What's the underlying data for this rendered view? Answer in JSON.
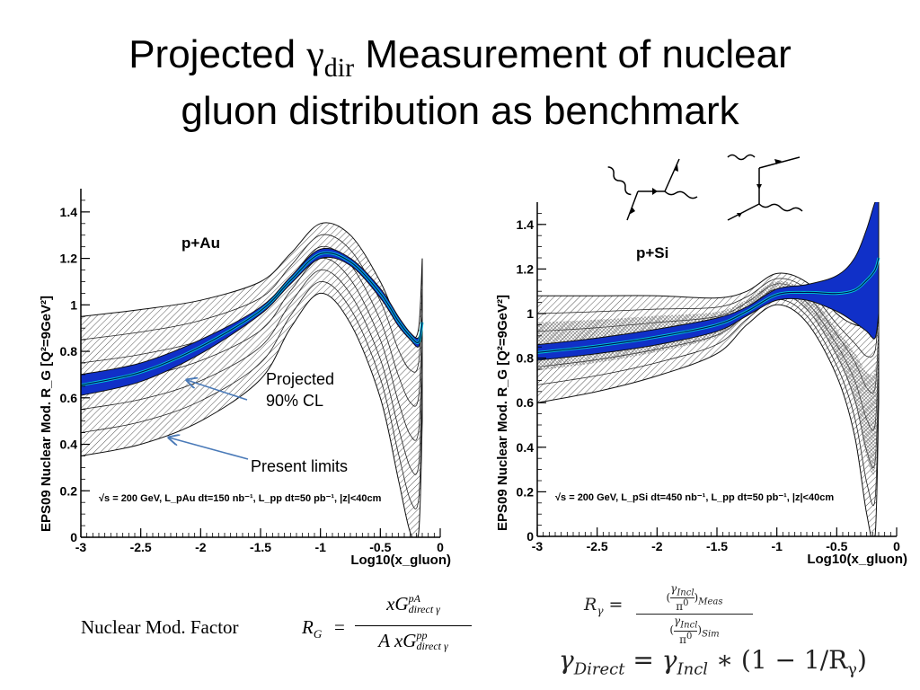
{
  "title": {
    "part1": "Projected ",
    "gamma": "γ",
    "sub": "dir",
    "part2": " Measurement of nuclear",
    "line2": "gluon distribution as benchmark"
  },
  "chart_data": [
    {
      "type": "area",
      "label": "p+Au",
      "ylabel": "EPS09 Nuclear Mod. R_G [Q²=9GeV²]",
      "xlabel": "Log10(x_gluon)",
      "xlim": [
        -3,
        0
      ],
      "ylim": [
        0,
        1.5
      ],
      "xticks": [
        "-3",
        "-2.5",
        "-2",
        "-1.5",
        "-1",
        "-0.5",
        "0"
      ],
      "yticks": [
        "0",
        "0.2",
        "0.4",
        "0.6",
        "0.8",
        "1",
        "1.2",
        "1.4"
      ],
      "info": "√s = 200 GeV, L_pAu dt=150 nb⁻¹, L_pp dt=50 pb⁻¹, |z|<40cm",
      "series": [
        {
          "name": "Present limits",
          "x": [
            -3,
            -2.5,
            -2,
            -1.5,
            -1.25,
            -1,
            -0.75,
            -0.5,
            -0.35,
            -0.25,
            -0.18,
            -0.15
          ],
          "upper": [
            0.95,
            0.98,
            1.02,
            1.1,
            1.22,
            1.35,
            1.3,
            1.1,
            0.92,
            0.86,
            0.9,
            1.2
          ],
          "lower": [
            0.35,
            0.4,
            0.5,
            0.68,
            0.9,
            1.05,
            0.92,
            0.6,
            0.25,
            0.02,
            0.02,
            0.5
          ]
        },
        {
          "name": "Projected 90% CL",
          "x": [
            -3,
            -2.5,
            -2,
            -1.5,
            -1.25,
            -1,
            -0.75,
            -0.5,
            -0.35,
            -0.25,
            -0.18,
            -0.15
          ],
          "upper": [
            0.7,
            0.75,
            0.85,
            0.99,
            1.12,
            1.24,
            1.2,
            1.07,
            0.95,
            0.88,
            0.86,
            0.95
          ],
          "lower": [
            0.61,
            0.67,
            0.79,
            0.96,
            1.09,
            1.2,
            1.17,
            1.03,
            0.91,
            0.85,
            0.82,
            0.9
          ]
        }
      ]
    },
    {
      "type": "area",
      "label": "p+Si",
      "ylabel": "EPS09 Nuclear Mod. R_G [Q²=9GeV²]",
      "xlabel": "Log10(x_gluon)",
      "xlim": [
        -3,
        0
      ],
      "ylim": [
        0,
        1.5
      ],
      "xticks": [
        "-3",
        "-2.5",
        "-2",
        "-1.5",
        "-1",
        "-0.5",
        "0"
      ],
      "yticks": [
        "0",
        "0.2",
        "0.4",
        "0.6",
        "0.8",
        "1",
        "1.2",
        "1.4"
      ],
      "info": "√s = 200 GeV, L_pSi dt=450 nb⁻¹, L_pp dt=50 pb⁻¹, |z|<40cm",
      "series": [
        {
          "name": "Present limits",
          "x": [
            -3,
            -2.5,
            -2,
            -1.5,
            -1.25,
            -1,
            -0.75,
            -0.5,
            -0.35,
            -0.25,
            -0.18,
            -0.15
          ],
          "upper": [
            1.08,
            1.08,
            1.08,
            1.07,
            1.1,
            1.18,
            1.14,
            1.0,
            0.95,
            0.95,
            1.0,
            1.1
          ],
          "lower": [
            0.6,
            0.65,
            0.72,
            0.82,
            0.95,
            1.04,
            0.96,
            0.72,
            0.45,
            0.1,
            0.0,
            0.6
          ]
        },
        {
          "name": "Projected 90% CL",
          "x": [
            -3,
            -2.5,
            -2,
            -1.5,
            -1.25,
            -1,
            -0.75,
            -0.5,
            -0.35,
            -0.25,
            -0.18,
            -0.15
          ],
          "upper": [
            0.86,
            0.89,
            0.93,
            0.98,
            1.03,
            1.11,
            1.13,
            1.17,
            1.25,
            1.38,
            1.5,
            1.5
          ],
          "lower": [
            0.79,
            0.82,
            0.86,
            0.92,
            0.99,
            1.06,
            1.06,
            1.01,
            0.96,
            0.92,
            0.89,
            1.0
          ]
        }
      ]
    }
  ],
  "annotations": {
    "projected_l1": "Projected",
    "projected_l2": "90% CL",
    "present": "Present limits"
  },
  "formulas": {
    "factor_label": "Nuclear Mod. Factor",
    "RG": "R",
    "RG_sub": "G",
    "eq": "=",
    "num": "xG",
    "num_sup": "pA",
    "num_sub": "direct γ",
    "den_A": "A",
    "den": "xG",
    "den_sup": "pp",
    "den_sub": "direct γ",
    "rgamma_lhs": "R",
    "rgamma_sub": "γ",
    "gin": "γ",
    "gin_sub": "Incl",
    "pi": "π",
    "pi_sup": "0",
    "meas": "Meas",
    "sim": "Sim",
    "gdir": "γ",
    "gdir_sub": "Direct",
    "gincl": "γ",
    "gincl_sub": "Incl",
    "star": "∗",
    "paren": "(1 − 1/R",
    "paren_sub": "γ",
    "paren_close": ")"
  },
  "colors": {
    "projected_band": "#1030c8",
    "projected_inner": "#00c8d8",
    "hatch": "#555555"
  }
}
